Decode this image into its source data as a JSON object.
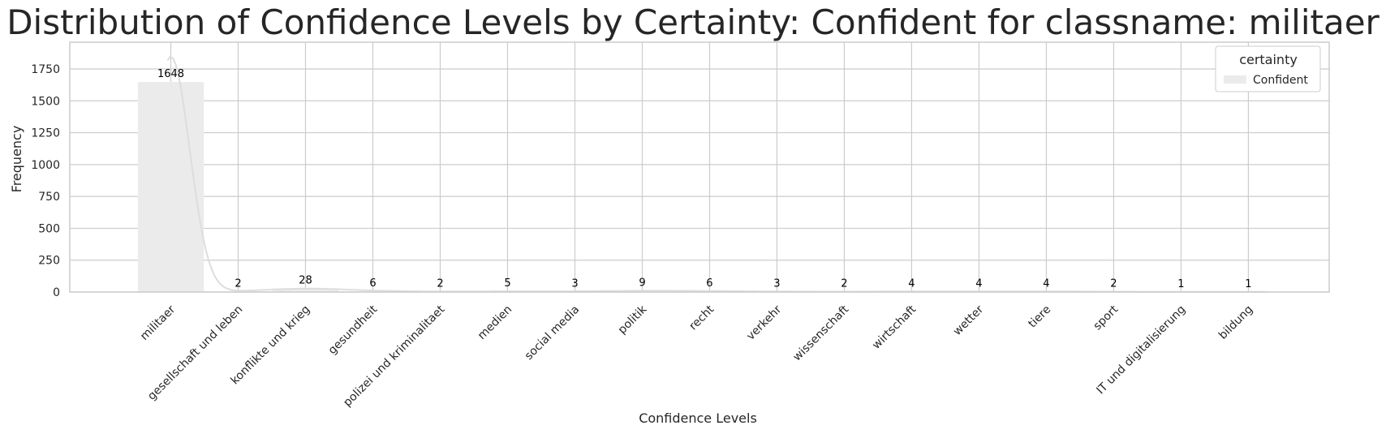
{
  "chart_data": {
    "type": "bar",
    "title": "Distribution of Confidence Levels by Certainty: Confident for classname: militaer",
    "xlabel": "Confidence Levels",
    "ylabel": "Frequency",
    "categories": [
      "militaer",
      "gesellschaft und leben",
      "konflikte und krieg",
      "gesundheit",
      "polizei und kriminalitaet",
      "medien",
      "social media",
      "politik",
      "recht",
      "verkehr",
      "wissenschaft",
      "wirtschaft",
      "wetter",
      "tiere",
      "sport",
      "IT und digitalisierung",
      "bildung"
    ],
    "series": [
      {
        "name": "Confident",
        "values": [
          1648,
          2,
          28,
          6,
          2,
          5,
          3,
          9,
          6,
          3,
          2,
          4,
          4,
          4,
          2,
          1,
          1
        ],
        "color": "#ebebeb"
      }
    ],
    "data_labels": [
      "1648",
      "2",
      "28",
      "6",
      "2",
      "5",
      "3",
      "9",
      "6",
      "3",
      "2",
      "4",
      "4",
      "4",
      "2",
      "1",
      "1"
    ],
    "yticks": [
      0,
      250,
      500,
      750,
      1000,
      1250,
      1500,
      1750
    ],
    "ylim": [
      0,
      1960
    ],
    "xlim": [
      -1.5,
      17.2
    ],
    "grid": true,
    "kde_line": true,
    "legend": {
      "title": "certainty",
      "entries": [
        "Confident"
      ],
      "placement": "top-right"
    },
    "colors": {
      "grid": "#cccccc",
      "axes": "#cccccc",
      "kde": "#dddddd",
      "text": "#262626"
    }
  }
}
